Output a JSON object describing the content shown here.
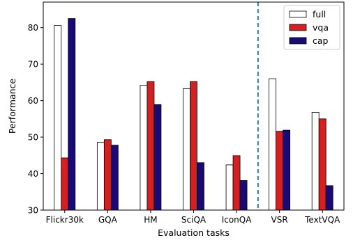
{
  "chart_data": {
    "type": "bar",
    "title": "",
    "xlabel": "Evaluation tasks",
    "ylabel": "Performance",
    "categories": [
      "Flickr30k",
      "GQA",
      "HM",
      "SciQA",
      "IconQA",
      "VSR",
      "TextVQA"
    ],
    "series": [
      {
        "name": "full",
        "values": [
          80.6,
          48.6,
          64.2,
          63.3,
          42.4,
          66.0,
          56.8
        ],
        "color": "#ffffff",
        "edge": "#000000"
      },
      {
        "name": "vqa",
        "values": [
          44.3,
          49.3,
          65.2,
          65.2,
          44.9,
          51.6,
          55.0
        ],
        "color": "#d42020",
        "edge": "#000000"
      },
      {
        "name": "cap",
        "values": [
          82.5,
          47.8,
          58.9,
          43.0,
          38.1,
          51.9,
          36.7
        ],
        "color": "#1a0a78",
        "edge": "#000000"
      }
    ],
    "ylim": [
      30,
      87
    ],
    "yticks": [
      30,
      40,
      50,
      60,
      70,
      80
    ],
    "grid": false,
    "legend_position": "top-right",
    "divider_after_category": "IconQA",
    "divider_color": "#2b7bba"
  }
}
